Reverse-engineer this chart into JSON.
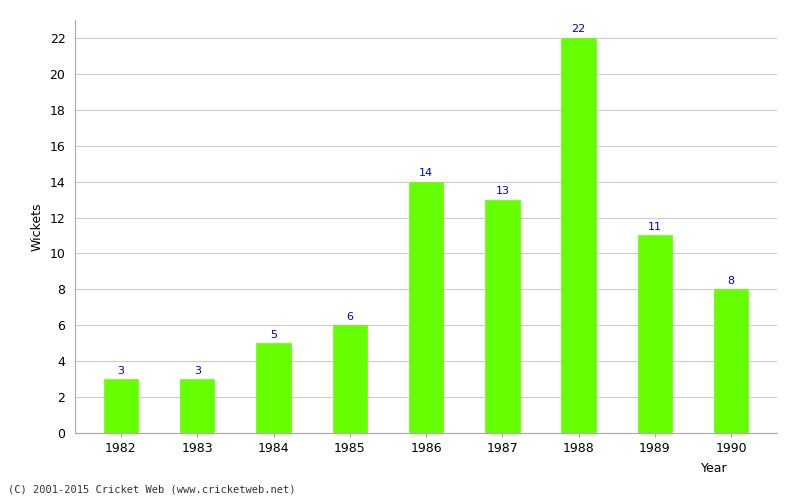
{
  "years": [
    1982,
    1983,
    1984,
    1985,
    1986,
    1987,
    1988,
    1989,
    1990
  ],
  "wickets": [
    3,
    3,
    5,
    6,
    14,
    13,
    22,
    11,
    8
  ],
  "bar_color": "#66ff00",
  "bar_edge_color": "#66ff00",
  "label_color": "#0000cc",
  "xlabel": "Year",
  "ylabel": "Wickets",
  "ylim": [
    0,
    23
  ],
  "yticks": [
    0,
    2,
    4,
    6,
    8,
    10,
    12,
    14,
    16,
    18,
    20,
    22
  ],
  "background_color": "#ffffff",
  "grid_color": "#cccccc",
  "label_fontsize": 8,
  "axis_label_fontsize": 9,
  "tick_fontsize": 9,
  "bar_width": 0.45,
  "footer_text": "(C) 2001-2015 Cricket Web (www.cricketweb.net)"
}
